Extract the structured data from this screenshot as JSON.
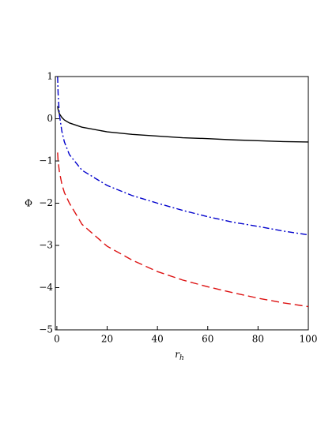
{
  "chart_data": {
    "type": "line",
    "x_label": "r",
    "x_label_sub": "h",
    "y_label": "Φ",
    "x": [
      0.3,
      0.5,
      1,
      2,
      3,
      5,
      10,
      20,
      30,
      40,
      50,
      60,
      70,
      80,
      90,
      100
    ],
    "series": [
      {
        "color": "#000000",
        "dash": "solid",
        "values": [
          0.3,
          0.22,
          0.12,
          0.03,
          -0.03,
          -0.1,
          -0.2,
          -0.31,
          -0.37,
          -0.41,
          -0.45,
          -0.47,
          -0.5,
          -0.52,
          -0.54,
          -0.55
        ]
      },
      {
        "color": "#0000cc",
        "dash": "dashdot",
        "values": [
          1.0,
          0.6,
          0.1,
          -0.3,
          -0.55,
          -0.85,
          -1.22,
          -1.58,
          -1.82,
          -2.0,
          -2.17,
          -2.32,
          -2.45,
          -2.55,
          -2.66,
          -2.75
        ]
      },
      {
        "color": "#dd1111",
        "dash": "dashed",
        "values": [
          -0.8,
          -1.0,
          -1.25,
          -1.55,
          -1.75,
          -2.0,
          -2.5,
          -3.02,
          -3.35,
          -3.62,
          -3.82,
          -3.98,
          -4.12,
          -4.25,
          -4.36,
          -4.45
        ]
      }
    ],
    "xlim": [
      -0.6,
      100
    ],
    "ylim": [
      -5,
      1
    ],
    "xticks": [
      0,
      20,
      40,
      60,
      80,
      100
    ],
    "yticks": [
      {
        "value": -5,
        "label": "−5"
      },
      {
        "value": -4,
        "label": "−4"
      },
      {
        "value": -3,
        "label": "−3"
      },
      {
        "value": -2,
        "label": "−2"
      },
      {
        "value": -1,
        "label": "−1"
      },
      0,
      1
    ]
  }
}
